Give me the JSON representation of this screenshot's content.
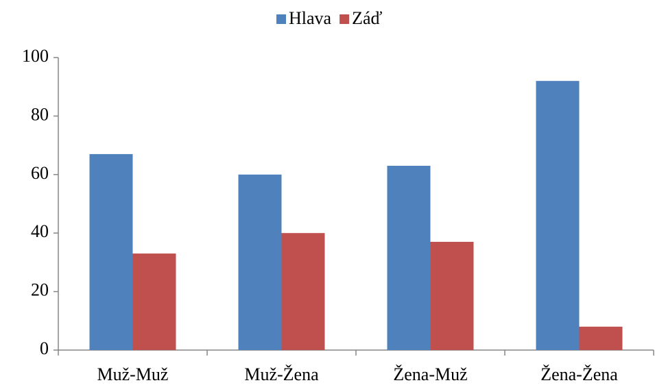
{
  "chart_data": {
    "type": "bar",
    "categories": [
      "Muž-Muž",
      "Muž-Žena",
      "Žena-Muž",
      "Žena-Žena"
    ],
    "series": [
      {
        "name": "Hlava",
        "color": "#4f81bd",
        "values": [
          67,
          60,
          63,
          92
        ]
      },
      {
        "name": "Záď",
        "color": "#c0504d",
        "values": [
          33,
          40,
          37,
          8
        ]
      }
    ],
    "ylim": [
      0,
      100
    ],
    "yticks": [
      0,
      20,
      40,
      60,
      80,
      100
    ],
    "grid": false,
    "legend": "top"
  }
}
